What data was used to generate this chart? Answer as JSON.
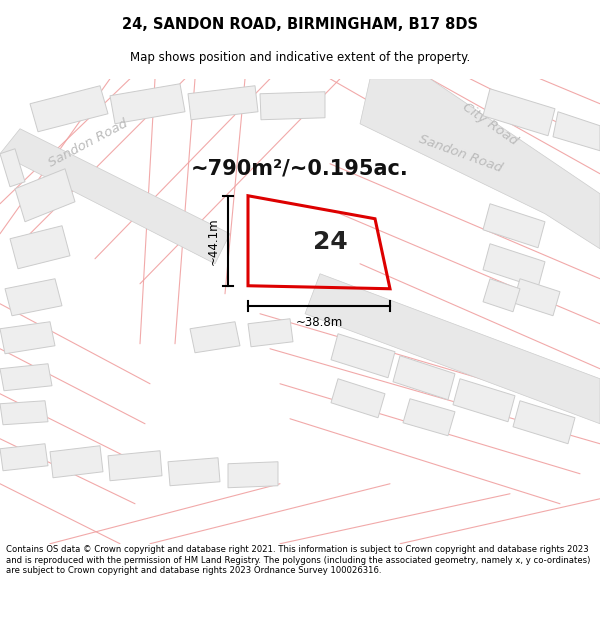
{
  "title": "24, SANDON ROAD, BIRMINGHAM, B17 8DS",
  "subtitle": "Map shows position and indicative extent of the property.",
  "area_text": "~790m²/~0.195ac.",
  "label_24": "24",
  "dim_width": "~38.8m",
  "dim_height": "~44.1m",
  "footer": "Contains OS data © Crown copyright and database right 2021. This information is subject to Crown copyright and database rights 2023 and is reproduced with the permission of HM Land Registry. The polygons (including the associated geometry, namely x, y co-ordinates) are subject to Crown copyright and database rights 2023 Ordnance Survey 100026316.",
  "bg_color": "#ffffff",
  "map_bg": "#ffffff",
  "building_fill": "#eeeeee",
  "building_edge": "#cccccc",
  "road_fill": "#e8e8e8",
  "road_edge": "#cccccc",
  "plot_stroke": "#dd0000",
  "cadastral_color": "#f0a0a0",
  "road_label_color": "#bbbbbb",
  "title_color": "#000000",
  "footer_color": "#000000"
}
